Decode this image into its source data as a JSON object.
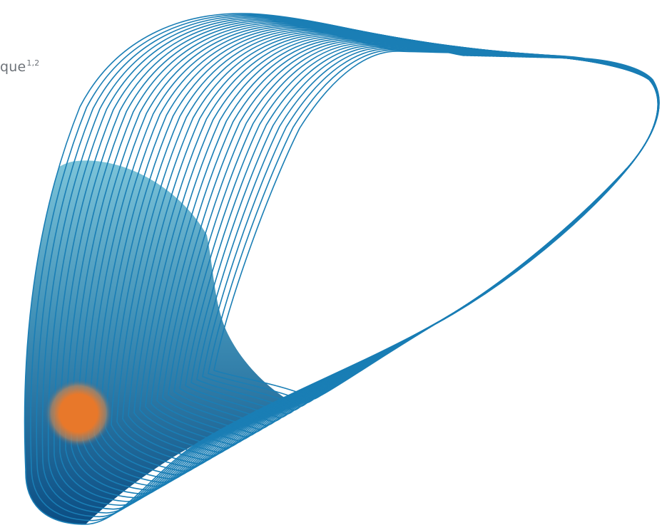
{
  "caption": {
    "text": "que",
    "superscript": "1,2"
  },
  "colors": {
    "contour_stroke": "#1a7eb5",
    "fill_light": "#7cc4d9",
    "fill_dark": "#0b4d83",
    "lesion": "#e8782a",
    "caption": "#6d7278"
  },
  "illustration": {
    "icon": "liver-contour-icon",
    "lesion_icon": "lesion-spot-icon"
  }
}
